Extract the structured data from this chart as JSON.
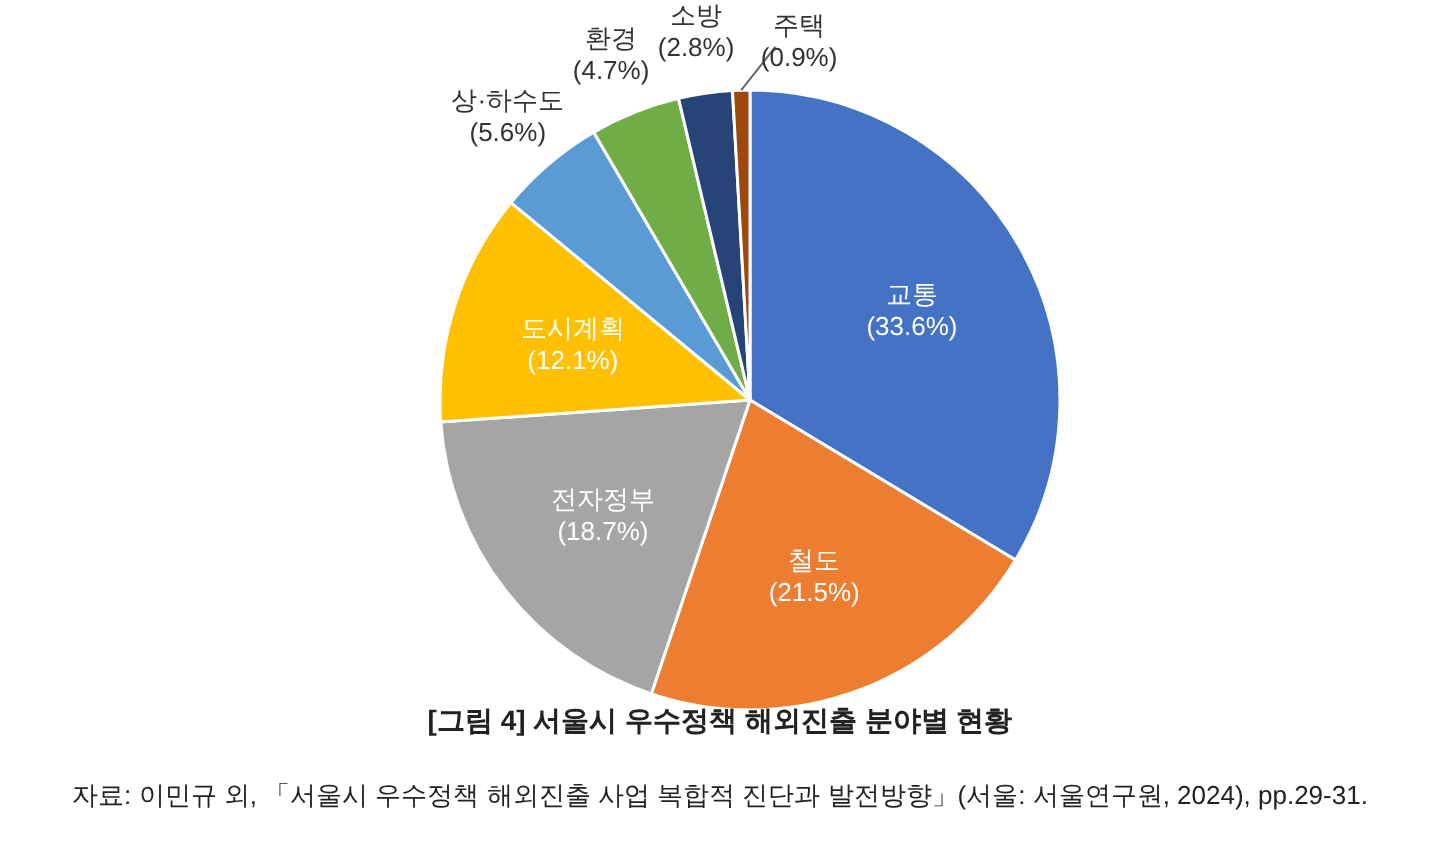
{
  "chart_data": {
    "type": "pie",
    "title": "[그림 4] 서울시 우수정책 해외진출 분야별 현황",
    "annotations": [
      "자료: 이민규 외, 「서울시 우수정책 해외진출 사업 복합적 진단과 발전방향」(서울: 서울연구원, 2024), pp.29-31."
    ],
    "categories": [
      "교통",
      "철도",
      "전자정부",
      "도시계획",
      "상·하수도",
      "환경",
      "소방",
      "주택"
    ],
    "values": [
      33.6,
      21.5,
      18.7,
      12.1,
      5.6,
      4.7,
      2.8,
      0.9
    ],
    "colors": [
      "#4472c4",
      "#ed7d31",
      "#a5a5a5",
      "#ffc000",
      "#5b9bd5",
      "#70ad47",
      "#264478",
      "#9e480e"
    ],
    "value_labels": [
      "(33.6%)",
      "(21.5%)",
      "(18.7%)",
      "(12.1%)",
      "(5.6%)",
      "(4.7%)",
      "(2.8%)",
      "(0.9%)"
    ]
  }
}
